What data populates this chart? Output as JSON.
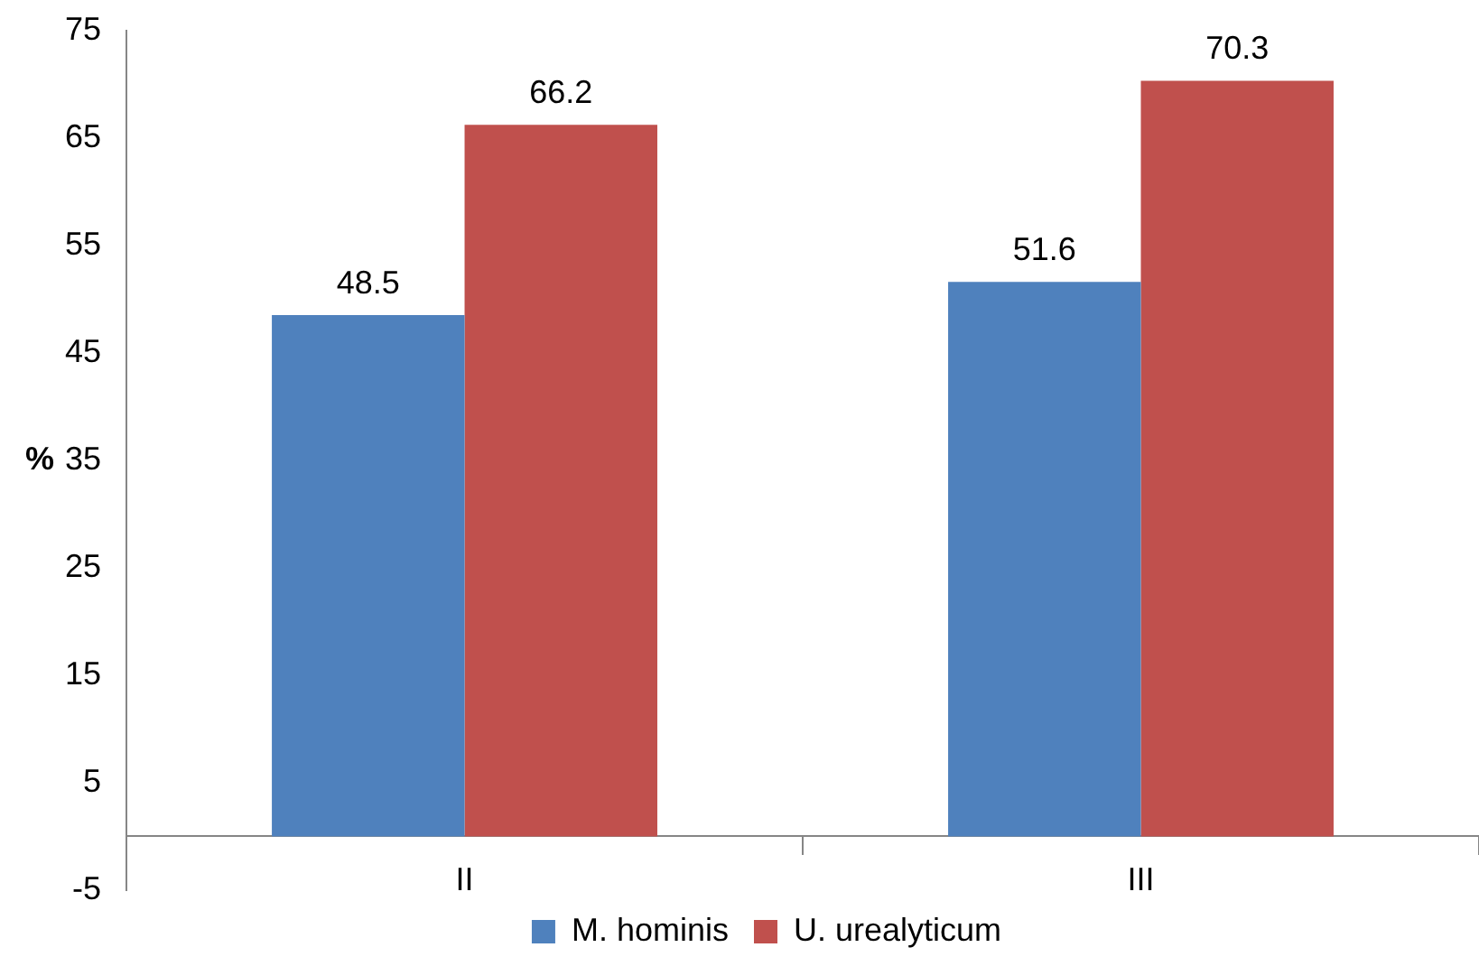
{
  "chart_data": {
    "type": "bar",
    "ylabel": "%",
    "categories": [
      "II",
      "III"
    ],
    "series": [
      {
        "name": "M. hominis",
        "color": "#4f81bd",
        "values": [
          48.5,
          51.6
        ]
      },
      {
        "name": "U. urealyticum",
        "color": "#c0504d",
        "values": [
          66.2,
          70.3
        ]
      }
    ],
    "ylim": [
      -5,
      75
    ],
    "yticks": [
      -5,
      5,
      15,
      25,
      35,
      45,
      55,
      65,
      75
    ],
    "grid": false,
    "legend": "bottom",
    "data_labels": true
  }
}
